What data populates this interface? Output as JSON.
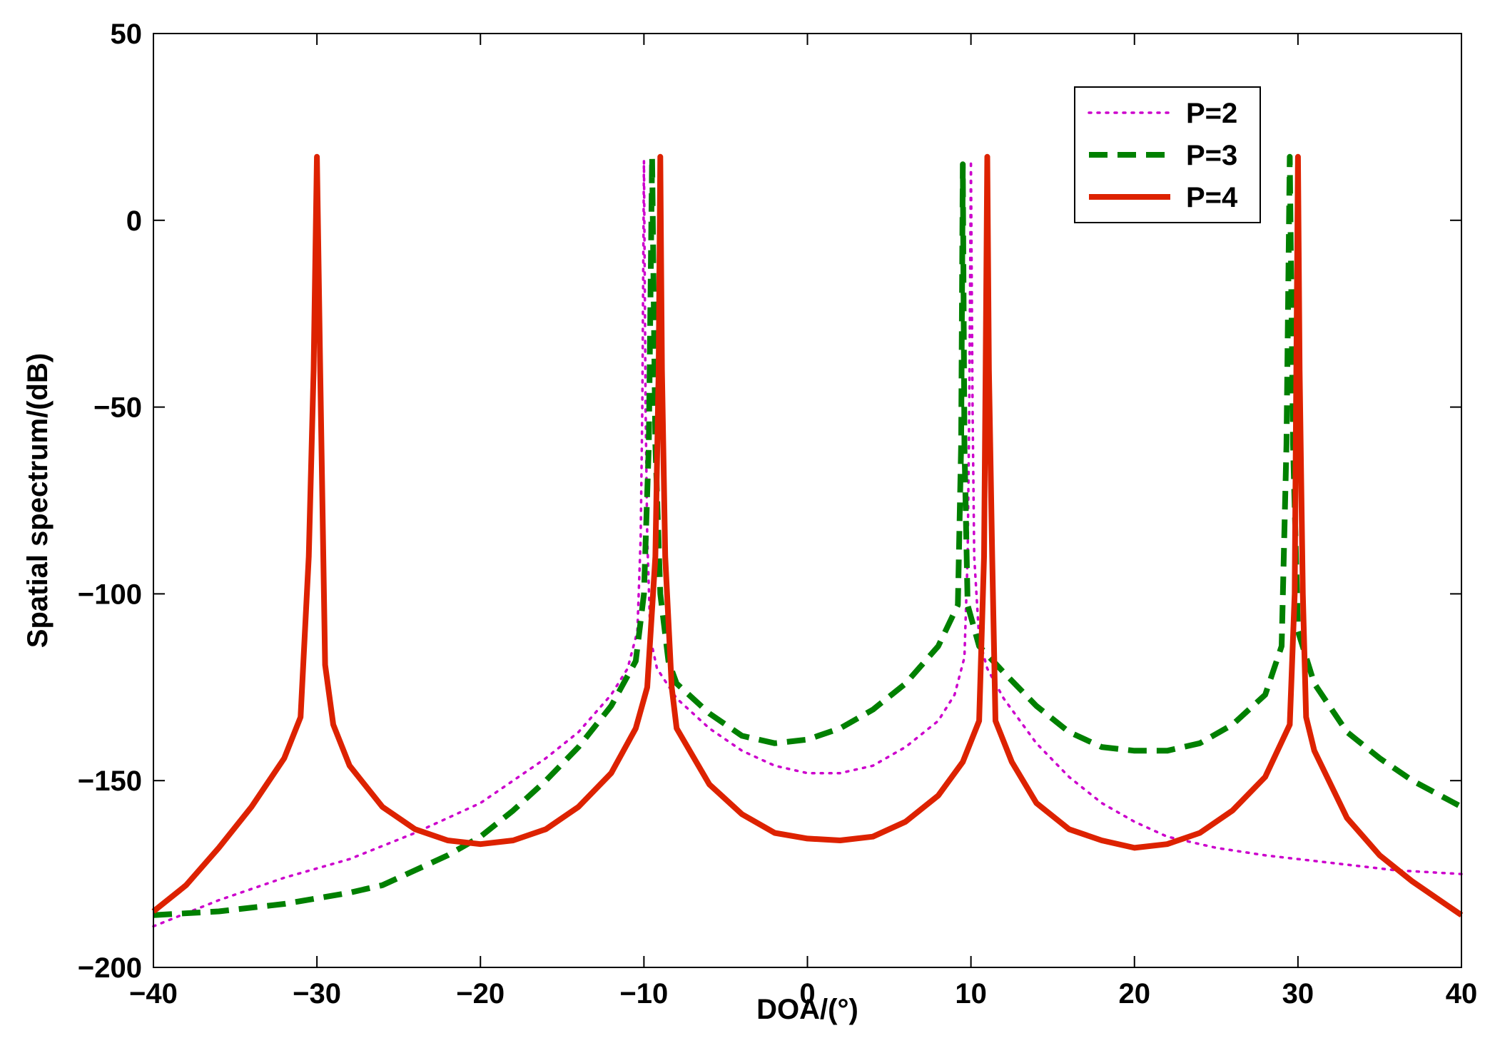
{
  "chart_data": {
    "type": "line",
    "title": "",
    "xlabel": "DOA/(°)",
    "ylabel": "Spatial spectrum/(dB)",
    "xlim": [
      -40,
      40
    ],
    "ylim": [
      -200,
      50
    ],
    "xticks": [
      -40,
      -30,
      -20,
      -10,
      0,
      10,
      20,
      30,
      40
    ],
    "yticks": [
      -200,
      -150,
      -100,
      -50,
      0,
      50
    ],
    "xtick_labels": [
      "−40",
      "−30",
      "−20",
      "−10",
      "0",
      "10",
      "20",
      "30",
      "40"
    ],
    "ytick_labels": [
      "−200",
      "−150",
      "−100",
      "−50",
      "0",
      "50"
    ],
    "grid": false,
    "legend_position": "top-right",
    "series": [
      {
        "name": "P=2",
        "color": "#cc00cc",
        "style": "dotted",
        "points": [
          [
            -40,
            -189
          ],
          [
            -36,
            -182
          ],
          [
            -32,
            -176
          ],
          [
            -28,
            -171
          ],
          [
            -24,
            -164
          ],
          [
            -22,
            -160
          ],
          [
            -20,
            -156
          ],
          [
            -18,
            -150
          ],
          [
            -16,
            -144
          ],
          [
            -14,
            -137
          ],
          [
            -12,
            -127
          ],
          [
            -11,
            -120
          ],
          [
            -10.4,
            -110
          ],
          [
            -10.2,
            -85
          ],
          [
            -10.1,
            -50
          ],
          [
            -10.0,
            16
          ],
          [
            -9.9,
            -50
          ],
          [
            -9.8,
            -85
          ],
          [
            -9.6,
            -112
          ],
          [
            -9.2,
            -120
          ],
          [
            -8,
            -128
          ],
          [
            -6,
            -136
          ],
          [
            -4,
            -142
          ],
          [
            -2,
            -146
          ],
          [
            0,
            -148
          ],
          [
            2,
            -148
          ],
          [
            4,
            -146
          ],
          [
            6,
            -141
          ],
          [
            8,
            -134
          ],
          [
            9,
            -127
          ],
          [
            9.6,
            -117
          ],
          [
            9.8,
            -90
          ],
          [
            9.9,
            -50
          ],
          [
            10.0,
            16
          ],
          [
            10.1,
            -50
          ],
          [
            10.2,
            -90
          ],
          [
            10.5,
            -112
          ],
          [
            11,
            -120
          ],
          [
            12,
            -128
          ],
          [
            14,
            -140
          ],
          [
            16,
            -149
          ],
          [
            18,
            -156
          ],
          [
            20,
            -161
          ],
          [
            22,
            -165
          ],
          [
            25,
            -168
          ],
          [
            28,
            -170
          ],
          [
            32,
            -172
          ],
          [
            36,
            -174
          ],
          [
            40,
            -175
          ]
        ]
      },
      {
        "name": "P=3",
        "color": "#008000",
        "style": "dashed",
        "points": [
          [
            -40,
            -186
          ],
          [
            -36,
            -185
          ],
          [
            -32,
            -183
          ],
          [
            -28,
            -180
          ],
          [
            -26,
            -178
          ],
          [
            -24,
            -174
          ],
          [
            -22,
            -170
          ],
          [
            -20,
            -165
          ],
          [
            -18,
            -158
          ],
          [
            -16,
            -150
          ],
          [
            -14,
            -141
          ],
          [
            -12,
            -130
          ],
          [
            -10.5,
            -118
          ],
          [
            -10,
            -100
          ],
          [
            -9.7,
            -60
          ],
          [
            -9.5,
            17
          ],
          [
            -9.3,
            -60
          ],
          [
            -9,
            -100
          ],
          [
            -8.5,
            -118
          ],
          [
            -8,
            -124
          ],
          [
            -6,
            -132
          ],
          [
            -4,
            -138
          ],
          [
            -2,
            -140
          ],
          [
            0,
            -139
          ],
          [
            2,
            -136
          ],
          [
            4,
            -131
          ],
          [
            6,
            -124
          ],
          [
            8,
            -114
          ],
          [
            9.2,
            -103
          ],
          [
            9.4,
            -60
          ],
          [
            9.5,
            15
          ],
          [
            9.6,
            -60
          ],
          [
            9.8,
            -103
          ],
          [
            10.5,
            -114
          ],
          [
            12,
            -121
          ],
          [
            14,
            -130
          ],
          [
            16,
            -137
          ],
          [
            18,
            -141
          ],
          [
            20,
            -142
          ],
          [
            22,
            -142
          ],
          [
            24,
            -140
          ],
          [
            26,
            -135
          ],
          [
            28,
            -127
          ],
          [
            29,
            -114
          ],
          [
            29.3,
            -60
          ],
          [
            29.5,
            17
          ],
          [
            29.7,
            -60
          ],
          [
            30,
            -110
          ],
          [
            31,
            -124
          ],
          [
            33,
            -137
          ],
          [
            35,
            -144
          ],
          [
            37,
            -150
          ],
          [
            40,
            -157
          ]
        ]
      },
      {
        "name": "P=4",
        "color": "#dd2200",
        "style": "solid",
        "points": [
          [
            -40,
            -185
          ],
          [
            -38,
            -178
          ],
          [
            -36,
            -168
          ],
          [
            -34,
            -157
          ],
          [
            -32,
            -144
          ],
          [
            -31,
            -133
          ],
          [
            -30.5,
            -90
          ],
          [
            -30.2,
            -40
          ],
          [
            -30,
            17
          ],
          [
            -29.8,
            -40
          ],
          [
            -29.5,
            -119
          ],
          [
            -29,
            -135
          ],
          [
            -28,
            -146
          ],
          [
            -26,
            -157
          ],
          [
            -24,
            -163
          ],
          [
            -22,
            -166
          ],
          [
            -20,
            -167
          ],
          [
            -18,
            -166
          ],
          [
            -16,
            -163
          ],
          [
            -14,
            -157
          ],
          [
            -12,
            -148
          ],
          [
            -10.5,
            -136
          ],
          [
            -9.8,
            -125
          ],
          [
            -9.3,
            -90
          ],
          [
            -9.1,
            -40
          ],
          [
            -9,
            17
          ],
          [
            -8.9,
            -40
          ],
          [
            -8.7,
            -90
          ],
          [
            -8.3,
            -125
          ],
          [
            -8,
            -136
          ],
          [
            -6,
            -151
          ],
          [
            -4,
            -159
          ],
          [
            -2,
            -164
          ],
          [
            0,
            -165.5
          ],
          [
            2,
            -166
          ],
          [
            4,
            -165
          ],
          [
            6,
            -161
          ],
          [
            8,
            -154
          ],
          [
            9.5,
            -145
          ],
          [
            10.5,
            -134
          ],
          [
            10.8,
            -90
          ],
          [
            10.9,
            -40
          ],
          [
            11,
            17
          ],
          [
            11.1,
            -40
          ],
          [
            11.3,
            -90
          ],
          [
            11.5,
            -134
          ],
          [
            12.5,
            -145
          ],
          [
            14,
            -156
          ],
          [
            16,
            -163
          ],
          [
            18,
            -166
          ],
          [
            20,
            -168
          ],
          [
            22,
            -167
          ],
          [
            24,
            -164
          ],
          [
            26,
            -158
          ],
          [
            28,
            -149
          ],
          [
            29.5,
            -135
          ],
          [
            29.8,
            -100
          ],
          [
            29.9,
            -40
          ],
          [
            30,
            17
          ],
          [
            30.1,
            -40
          ],
          [
            30.3,
            -100
          ],
          [
            30.5,
            -133
          ],
          [
            31,
            -142
          ],
          [
            33,
            -160
          ],
          [
            35,
            -170
          ],
          [
            37,
            -177
          ],
          [
            40,
            -186
          ]
        ]
      }
    ]
  }
}
